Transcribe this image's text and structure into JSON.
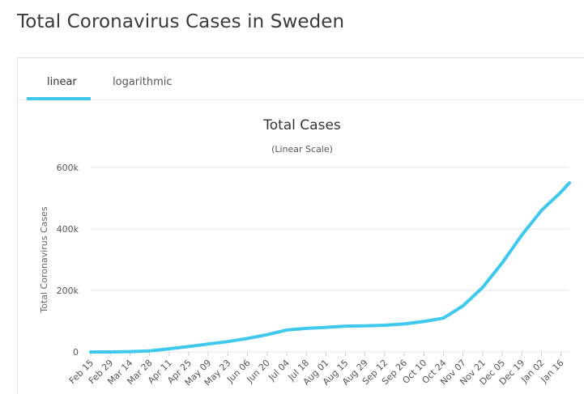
{
  "page": {
    "title": "Total Coronavirus Cases in Sweden"
  },
  "tabs": [
    {
      "label": "linear",
      "active": true
    },
    {
      "label": "logarithmic",
      "active": false
    }
  ],
  "colors": {
    "line": "#3ec8ee",
    "tab_active": "#3ec8ee"
  },
  "chart_data": {
    "type": "line",
    "title": "Total Cases",
    "subtitle": "(Linear Scale)",
    "ylabel": "Total Coronavirus Cases",
    "xlabel": "",
    "ylim": [
      0,
      600000
    ],
    "yticks": [
      {
        "value": 0,
        "label": "0"
      },
      {
        "value": 200000,
        "label": "200k"
      },
      {
        "value": 400000,
        "label": "400k"
      },
      {
        "value": 600000,
        "label": "600k"
      }
    ],
    "x_range": [
      "2020-02-15",
      "2021-01-22"
    ],
    "xticks": [
      {
        "date": "2020-02-15",
        "label": "Feb 15"
      },
      {
        "date": "2020-02-29",
        "label": "Feb 29"
      },
      {
        "date": "2020-03-14",
        "label": "Mar 14"
      },
      {
        "date": "2020-03-28",
        "label": "Mar 28"
      },
      {
        "date": "2020-04-11",
        "label": "Apr 11"
      },
      {
        "date": "2020-04-25",
        "label": "Apr 25"
      },
      {
        "date": "2020-05-09",
        "label": "May 09"
      },
      {
        "date": "2020-05-23",
        "label": "May 23"
      },
      {
        "date": "2020-06-06",
        "label": "Jun 06"
      },
      {
        "date": "2020-06-20",
        "label": "Jun 20"
      },
      {
        "date": "2020-07-04",
        "label": "Jul 04"
      },
      {
        "date": "2020-07-18",
        "label": "Jul 18"
      },
      {
        "date": "2020-08-01",
        "label": "Aug 01"
      },
      {
        "date": "2020-08-15",
        "label": "Aug 15"
      },
      {
        "date": "2020-08-29",
        "label": "Aug 29"
      },
      {
        "date": "2020-09-12",
        "label": "Sep 12"
      },
      {
        "date": "2020-09-26",
        "label": "Sep 26"
      },
      {
        "date": "2020-10-10",
        "label": "Oct 10"
      },
      {
        "date": "2020-10-24",
        "label": "Oct 24"
      },
      {
        "date": "2020-11-07",
        "label": "Nov 07"
      },
      {
        "date": "2020-11-21",
        "label": "Nov 21"
      },
      {
        "date": "2020-12-05",
        "label": "Dec 05"
      },
      {
        "date": "2020-12-19",
        "label": "Dec 19"
      },
      {
        "date": "2021-01-02",
        "label": "Jan 02"
      },
      {
        "date": "2021-01-16",
        "label": "Jan 16"
      }
    ],
    "grid": true,
    "series": [
      {
        "points": [
          [
            "2020-02-15",
            0
          ],
          [
            "2020-02-29",
            13
          ],
          [
            "2020-03-14",
            1000
          ],
          [
            "2020-03-28",
            3450
          ],
          [
            "2020-04-11",
            10150
          ],
          [
            "2020-04-25",
            17550
          ],
          [
            "2020-05-09",
            25900
          ],
          [
            "2020-05-23",
            33800
          ],
          [
            "2020-06-06",
            43900
          ],
          [
            "2020-06-20",
            56000
          ],
          [
            "2020-07-04",
            71400
          ],
          [
            "2020-07-18",
            76500
          ],
          [
            "2020-08-01",
            80100
          ],
          [
            "2020-08-15",
            83900
          ],
          [
            "2020-08-29",
            85000
          ],
          [
            "2020-09-12",
            86900
          ],
          [
            "2020-09-26",
            91000
          ],
          [
            "2020-10-10",
            99000
          ],
          [
            "2020-10-24",
            110000
          ],
          [
            "2020-11-07",
            150000
          ],
          [
            "2020-11-21",
            210000
          ],
          [
            "2020-12-05",
            290000
          ],
          [
            "2020-12-19",
            380000
          ],
          [
            "2021-01-02",
            460000
          ],
          [
            "2021-01-16",
            520000
          ],
          [
            "2021-01-22",
            550000
          ]
        ]
      }
    ]
  }
}
